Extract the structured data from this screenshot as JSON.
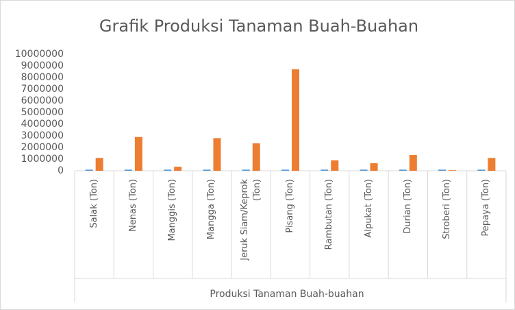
{
  "chart_data": {
    "type": "bar",
    "title": "Grafik Produksi Tanaman Buah-Buahan",
    "x_label": "Produksi Tanaman Buah-buahan",
    "categories": [
      "Salak (Ton)",
      "Nenas (Ton)",
      "Manggis (Ton)",
      "Mangga (Ton)",
      "Jeruk Siam/Keprok (Ton)",
      "Pisang (Ton)",
      "Rambutan (Ton)",
      "Alpukat (Ton)",
      "Durian (Ton)",
      "Stroberi (Ton)",
      "Pepaya (Ton)"
    ],
    "series": [
      {
        "color": "#5b9bd5",
        "values": [
          100000,
          100000,
          100000,
          100000,
          100000,
          100000,
          100000,
          100000,
          100000,
          100000,
          100000
        ]
      },
      {
        "color": "#ed7d31",
        "values": [
          1100000,
          2900000,
          350000,
          2800000,
          2350000,
          8700000,
          900000,
          650000,
          1350000,
          50000,
          1100000
        ]
      }
    ],
    "ylim": [
      0,
      10000000
    ],
    "yticks": [
      0,
      1000000,
      2000000,
      3000000,
      4000000,
      5000000,
      6000000,
      7000000,
      8000000,
      9000000,
      10000000
    ],
    "grid": false
  }
}
